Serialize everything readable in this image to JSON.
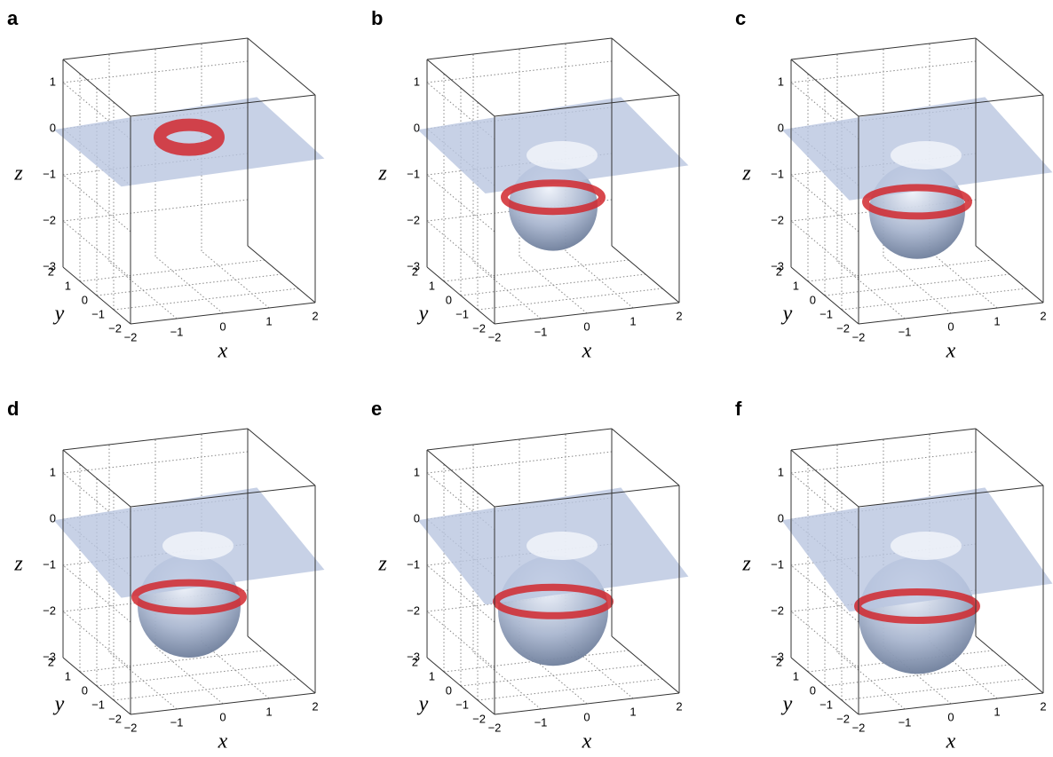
{
  "panels": [
    {
      "label": "a"
    },
    {
      "label": "b"
    },
    {
      "label": "c"
    },
    {
      "label": "d"
    },
    {
      "label": "e"
    },
    {
      "label": "f"
    }
  ],
  "axes": {
    "zticks": [
      "1",
      "0",
      "−1",
      "−2",
      "−3"
    ],
    "yticks": [
      "2",
      "1",
      "0",
      "−1",
      "−2"
    ],
    "xticks": [
      "−2",
      "−1",
      "0",
      "1",
      "2"
    ],
    "xlabel": "x",
    "ylabel": "y",
    "zlabel": "z"
  }
}
